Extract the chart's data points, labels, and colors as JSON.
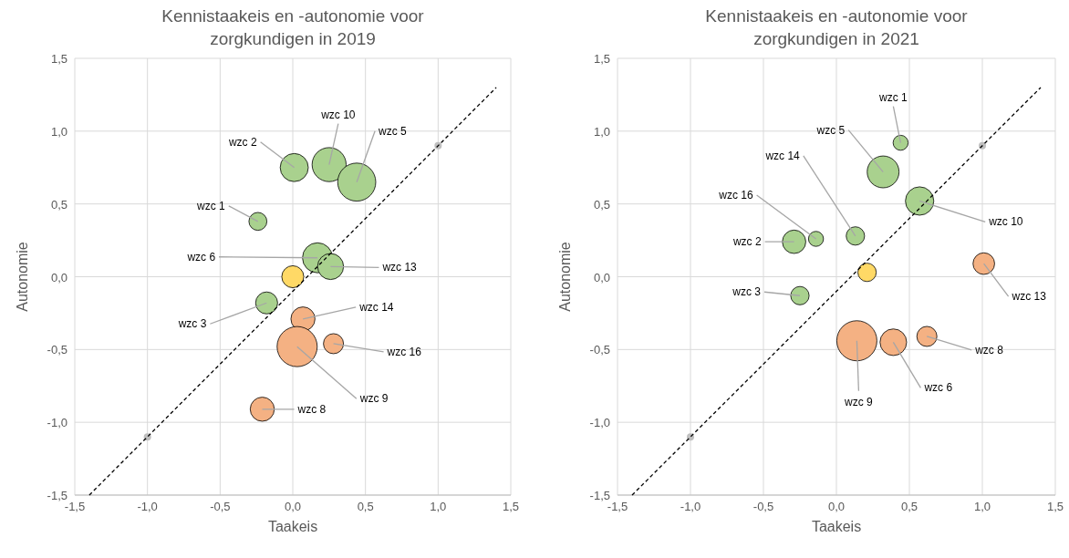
{
  "chart_data": [
    {
      "type": "bubble",
      "title": "Kennistaakeis en -autonomie voor zorgkundigen in 2019",
      "xlabel": "Taakeis",
      "ylabel": "Autonomie",
      "xlim": [
        -1.5,
        1.5
      ],
      "ylim": [
        -1.5,
        1.5
      ],
      "xticks": [
        {
          "value": -1.5,
          "label": "-1,5"
        },
        {
          "value": -1,
          "label": "-1,0"
        },
        {
          "value": -0.5,
          "label": "-0,5"
        },
        {
          "value": 0,
          "label": "0,0"
        },
        {
          "value": 0.5,
          "label": "0,5"
        },
        {
          "value": 1,
          "label": "1,0"
        },
        {
          "value": 1.5,
          "label": "1,5"
        }
      ],
      "yticks": [
        {
          "value": -1.5,
          "label": "-1,5"
        },
        {
          "value": -1,
          "label": "-1,0"
        },
        {
          "value": -0.5,
          "label": "-0,5"
        },
        {
          "value": 0,
          "label": "0,0"
        },
        {
          "value": 0.5,
          "label": "0,5"
        },
        {
          "value": 1,
          "label": "1,0"
        },
        {
          "value": 1.5,
          "label": "1,5"
        }
      ],
      "grid": true,
      "series": [
        {
          "x": [
            0.01,
            0.25,
            0.44,
            -0.24,
            0.17,
            0.26,
            0,
            -0.18,
            0.07,
            0.28,
            0.03,
            -0.21
          ],
          "values": [
            0.75,
            0.77,
            0.65,
            0.38,
            0.13,
            0.07,
            0,
            -0.18,
            -0.29,
            -0.46,
            -0.48,
            -0.91
          ],
          "sizes": [
            0.49,
            0.72,
            0.9,
            0.2,
            0.56,
            0.42,
            0.3,
            0.3,
            0.36,
            0.25,
            1,
            0.36
          ],
          "colors": [
            "#a9d18e",
            "#a9d18e",
            "#a9d18e",
            "#a9d18e",
            "#a9d18e",
            "#a9d18e",
            "#ffd966",
            "#a9d18e",
            "#f4b183",
            "#f4b183",
            "#f4b183",
            "#f4b183"
          ]
        },
        {
          "type": "scatter",
          "x": [
            -1,
            1
          ],
          "values": [
            -1.1,
            0.9
          ],
          "color": "#bfbfbf",
          "marker": "circle"
        },
        {
          "type": "line",
          "x": [
            -1.4,
            1.4
          ],
          "values": [
            -1.5,
            1.3
          ],
          "color": "#000000",
          "line_style": "dashed"
        }
      ],
      "annotations": [
        {
          "text": "wzc 2",
          "x": 0.01,
          "y": 0.75
        },
        {
          "text": "wzc 10",
          "x": 0.25,
          "y": 0.77
        },
        {
          "text": "wzc 5",
          "x": 0.44,
          "y": 0.65
        },
        {
          "text": "wzc 1",
          "x": -0.24,
          "y": 0.38
        },
        {
          "text": "wzc 6",
          "x": 0.17,
          "y": 0.13
        },
        {
          "text": "wzc 13",
          "x": 0.26,
          "y": 0.07
        },
        {
          "text": "wzc 3",
          "x": -0.18,
          "y": -0.18
        },
        {
          "text": "wzc 14",
          "x": 0.07,
          "y": -0.29
        },
        {
          "text": "wzc 16",
          "x": 0.28,
          "y": -0.46
        },
        {
          "text": "wzc 9",
          "x": 0.03,
          "y": -0.48
        },
        {
          "text": "wzc 8",
          "x": -0.21,
          "y": -0.91
        }
      ]
    },
    {
      "type": "bubble",
      "title": "Kennistaakeis en -autonomie voor zorgkundigen in 2021",
      "xlabel": "Taakeis",
      "ylabel": "Autonomie",
      "xlim": [
        -1.5,
        1.5
      ],
      "ylim": [
        -1.5,
        1.5
      ],
      "xticks": [
        {
          "value": -1.5,
          "label": "-1,5"
        },
        {
          "value": -1,
          "label": "-1,0"
        },
        {
          "value": -0.5,
          "label": "-0,5"
        },
        {
          "value": 0,
          "label": "0,0"
        },
        {
          "value": 0.5,
          "label": "0,5"
        },
        {
          "value": 1,
          "label": "1,0"
        },
        {
          "value": 1.5,
          "label": "1,5"
        }
      ],
      "yticks": [
        {
          "value": -1.5,
          "label": "-1,5"
        },
        {
          "value": -1,
          "label": "-1,0"
        },
        {
          "value": -0.5,
          "label": "-0,5"
        },
        {
          "value": 0,
          "label": "0,0"
        },
        {
          "value": 0.5,
          "label": "0,5"
        },
        {
          "value": 1,
          "label": "1,0"
        },
        {
          "value": 1.5,
          "label": "1,5"
        }
      ],
      "grid": true,
      "series": [
        {
          "x": [
            0.44,
            0.32,
            0.57,
            0.13,
            -0.14,
            -0.29,
            0.21,
            1.01,
            -0.25,
            0.14,
            0.39,
            0.62
          ],
          "values": [
            0.92,
            0.72,
            0.52,
            0.28,
            0.26,
            0.24,
            0.03,
            0.09,
            -0.13,
            -0.44,
            -0.45,
            -0.41
          ],
          "sizes": [
            0.14,
            0.63,
            0.5,
            0.21,
            0.14,
            0.34,
            0.21,
            0.29,
            0.21,
            1,
            0.44,
            0.25
          ],
          "colors": [
            "#a9d18e",
            "#a9d18e",
            "#a9d18e",
            "#a9d18e",
            "#a9d18e",
            "#a9d18e",
            "#ffd966",
            "#f4b183",
            "#a9d18e",
            "#f4b183",
            "#f4b183",
            "#f4b183"
          ]
        },
        {
          "type": "scatter",
          "x": [
            -1,
            1
          ],
          "values": [
            -1.1,
            0.9
          ],
          "color": "#bfbfbf",
          "marker": "circle"
        },
        {
          "type": "line",
          "x": [
            -1.4,
            1.4
          ],
          "values": [
            -1.5,
            1.3
          ],
          "color": "#000000",
          "line_style": "dashed"
        }
      ],
      "annotations": [
        {
          "text": "wzc 1",
          "x": 0.44,
          "y": 0.92
        },
        {
          "text": "wzc 5",
          "x": 0.32,
          "y": 0.72
        },
        {
          "text": "wzc 10",
          "x": 0.57,
          "y": 0.52
        },
        {
          "text": "wzc 14",
          "x": 0.13,
          "y": 0.28
        },
        {
          "text": "wzc 16",
          "x": -0.14,
          "y": 0.26
        },
        {
          "text": "wzc 2",
          "x": -0.29,
          "y": 0.24
        },
        {
          "text": "wzc 13",
          "x": 1.01,
          "y": 0.09
        },
        {
          "text": "wzc 3",
          "x": -0.25,
          "y": -0.13
        },
        {
          "text": "wzc 9",
          "x": 0.14,
          "y": -0.44
        },
        {
          "text": "wzc 6",
          "x": 0.39,
          "y": -0.45
        },
        {
          "text": "wzc 8",
          "x": 0.62,
          "y": -0.41
        }
      ]
    }
  ]
}
